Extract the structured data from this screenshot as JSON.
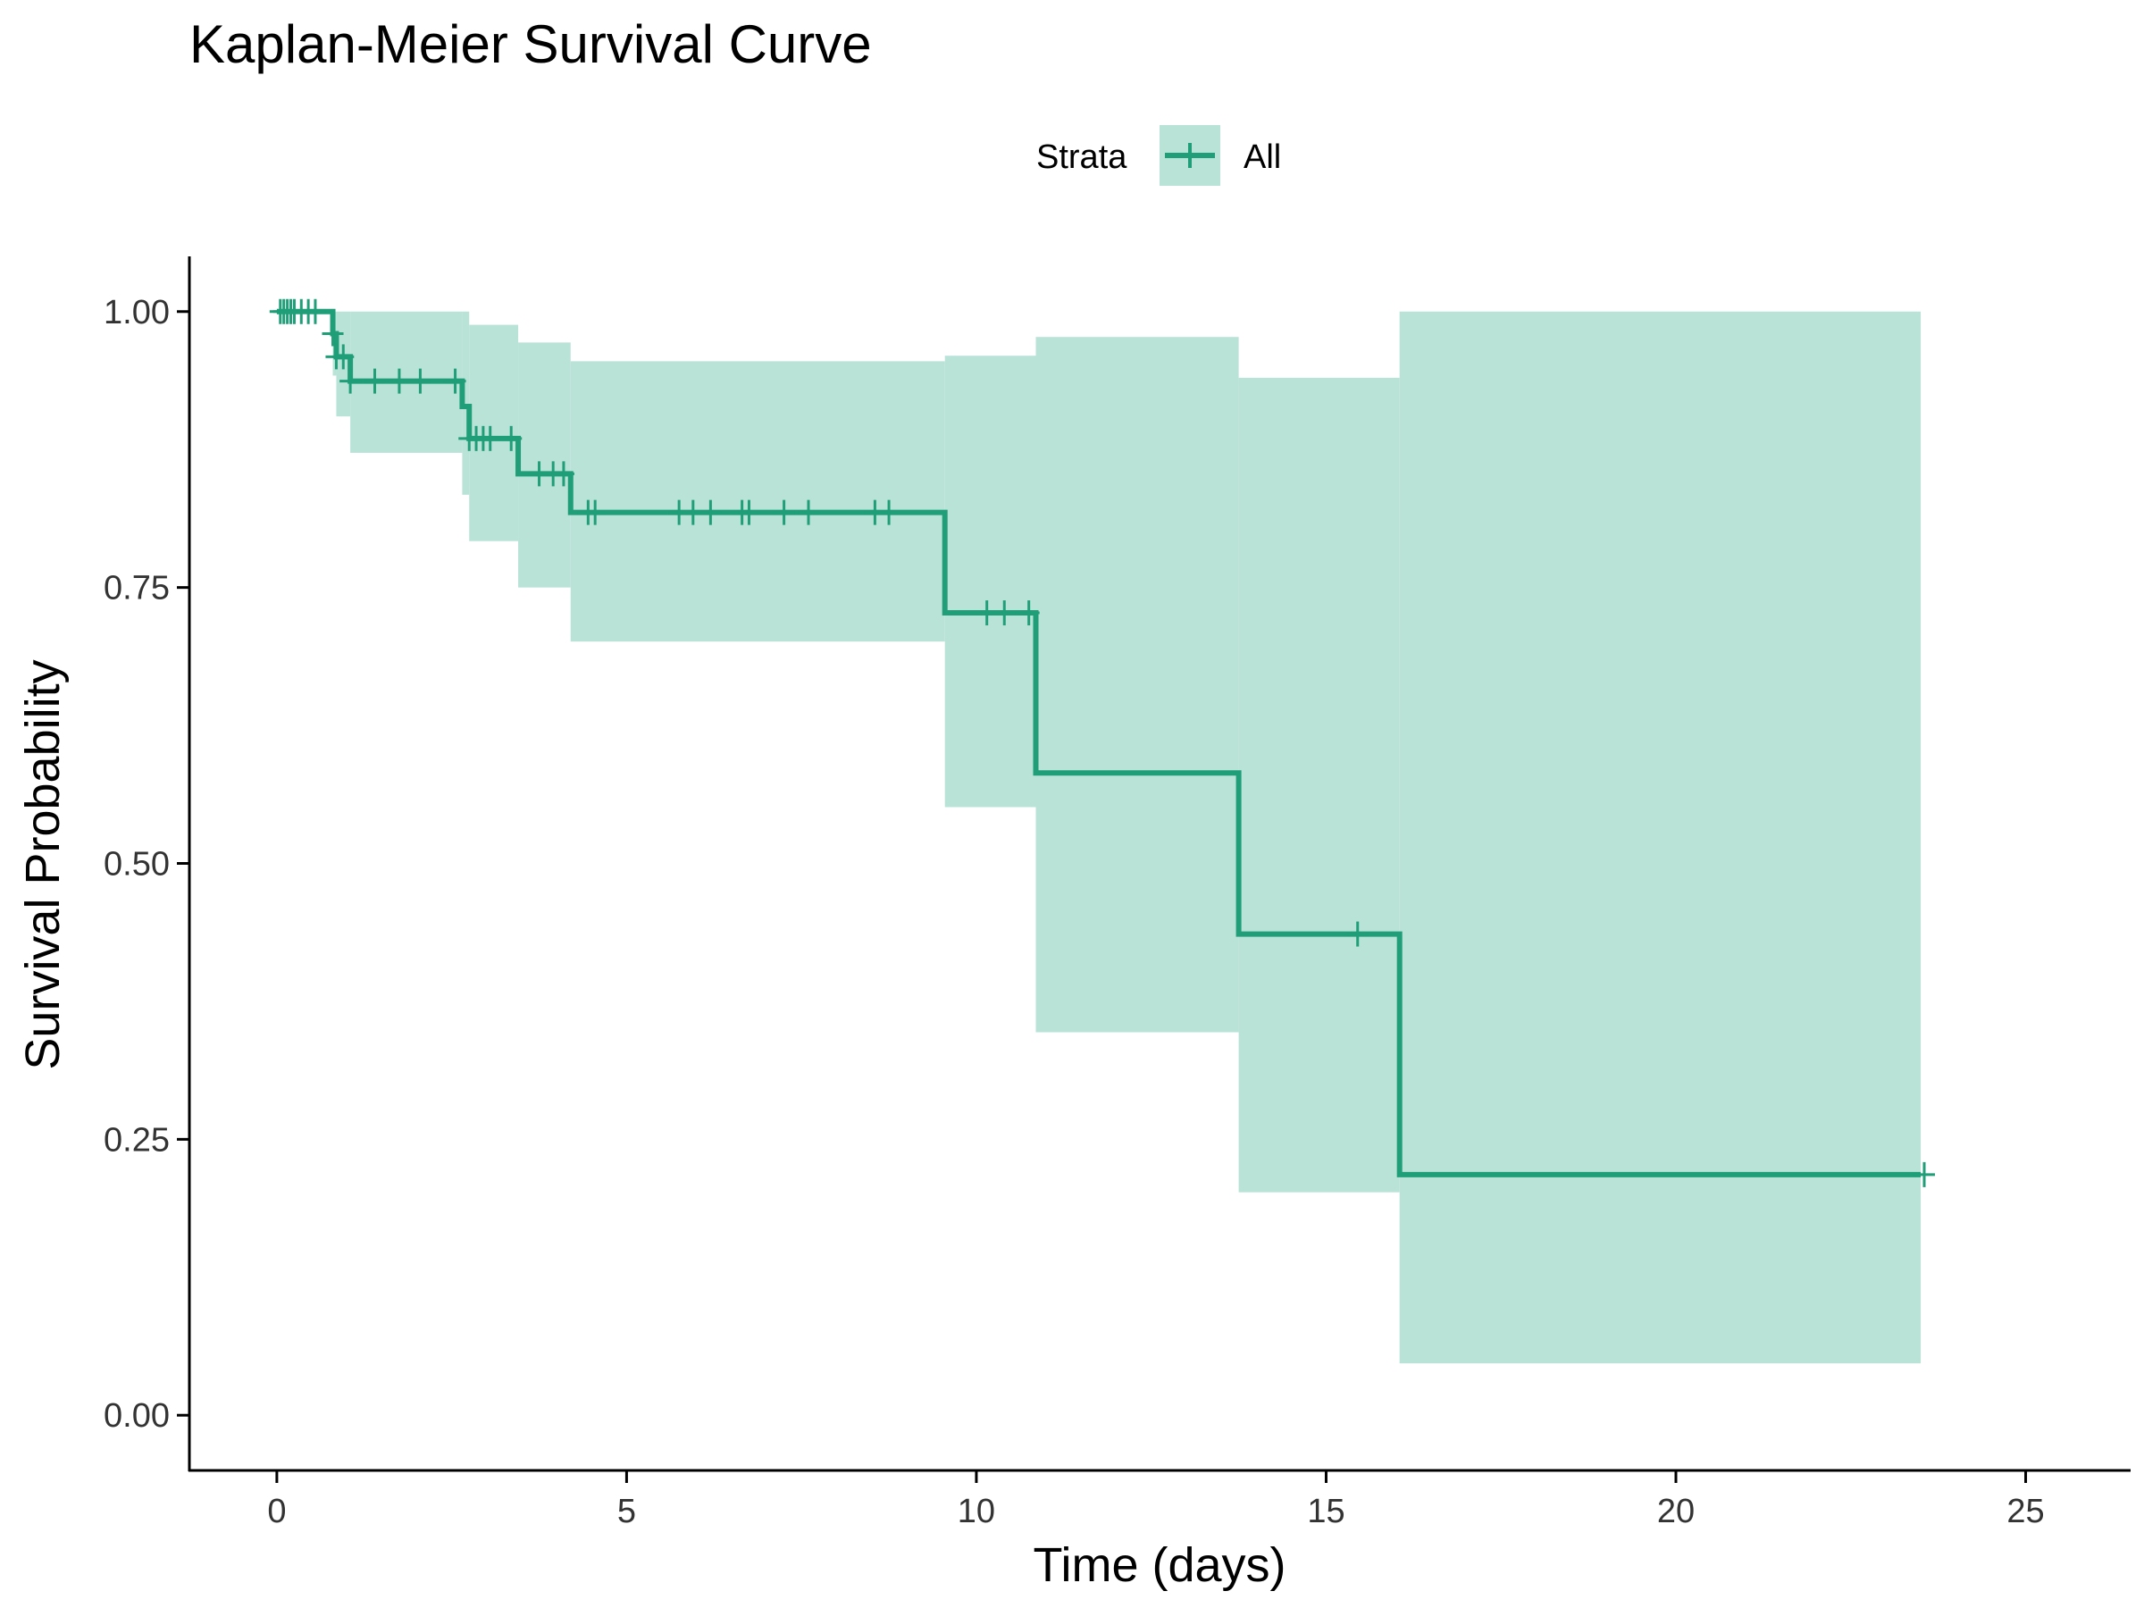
{
  "chart_data": {
    "type": "line",
    "subtype": "kaplan-meier step curve with confidence band",
    "title": "Kaplan-Meier Survival Curve",
    "xlabel": "Time (days)",
    "ylabel": "Survival Probability",
    "xlim": [
      -1.25,
      26.5
    ],
    "ylim": [
      -0.05,
      1.05
    ],
    "xticks": [
      0,
      5,
      10,
      15,
      20,
      25
    ],
    "xtick_labels": [
      "0",
      "5",
      "10",
      "15",
      "20",
      "25"
    ],
    "yticks": [
      0,
      0.25,
      0.5,
      0.75,
      1.0
    ],
    "ytick_labels": [
      "0.00",
      "0.25",
      "0.50",
      "0.75",
      "1.00"
    ],
    "grid": false,
    "legend": {
      "title": "Strata",
      "position": "top",
      "entries": [
        "All"
      ]
    },
    "colors": {
      "line": "#1f9e77",
      "band": "#bae3d8",
      "axis": "#000000"
    },
    "series": [
      {
        "name": "All",
        "steps": [
          {
            "t": 0.0,
            "s": 1.0,
            "lower": 1.0,
            "upper": 1.0
          },
          {
            "t": 0.8,
            "s": 0.98,
            "lower": 0.942,
            "upper": 1.0
          },
          {
            "t": 0.85,
            "s": 0.959,
            "lower": 0.905,
            "upper": 1.0
          },
          {
            "t": 1.05,
            "s": 0.937,
            "lower": 0.872,
            "upper": 1.0
          },
          {
            "t": 2.65,
            "s": 0.914,
            "lower": 0.834,
            "upper": 1.0
          },
          {
            "t": 2.75,
            "s": 0.885,
            "lower": 0.792,
            "upper": 0.988
          },
          {
            "t": 3.45,
            "s": 0.853,
            "lower": 0.75,
            "upper": 0.972
          },
          {
            "t": 4.2,
            "s": 0.818,
            "lower": 0.701,
            "upper": 0.955
          },
          {
            "t": 9.55,
            "s": 0.727,
            "lower": 0.551,
            "upper": 0.96
          },
          {
            "t": 10.85,
            "s": 0.582,
            "lower": 0.347,
            "upper": 0.977
          },
          {
            "t": 13.75,
            "s": 0.436,
            "lower": 0.202,
            "upper": 0.94
          },
          {
            "t": 16.05,
            "s": 0.218,
            "lower": 0.047,
            "upper": 1.0
          }
        ],
        "end_time": 23.5,
        "censor_times": [
          0.05,
          0.1,
          0.15,
          0.2,
          0.25,
          0.35,
          0.45,
          0.55,
          0.8,
          0.85,
          0.95,
          1.05,
          1.4,
          1.75,
          2.05,
          2.55,
          2.75,
          2.85,
          2.95,
          3.05,
          3.35,
          3.75,
          3.95,
          4.1,
          4.45,
          4.55,
          5.75,
          5.95,
          6.2,
          6.65,
          6.75,
          7.25,
          7.6,
          8.55,
          8.75,
          10.15,
          10.4,
          10.75,
          15.45,
          23.55
        ]
      }
    ]
  }
}
